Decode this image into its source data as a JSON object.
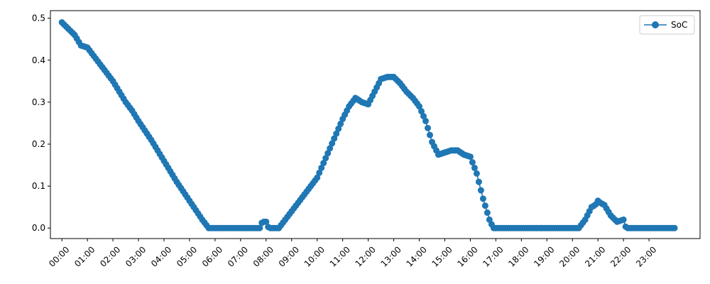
{
  "chart_data": {
    "type": "line",
    "title": "",
    "xlabel": "",
    "ylabel": "",
    "x_tick_labels": [
      "00:00",
      "01:00",
      "02:00",
      "03:00",
      "04:00",
      "05:00",
      "06:00",
      "07:00",
      "08:00",
      "09:00",
      "10:00",
      "11:00",
      "12:00",
      "13:00",
      "14:00",
      "15:00",
      "16:00",
      "17:00",
      "18:00",
      "19:00",
      "20:00",
      "21:00",
      "22:00",
      "23:00"
    ],
    "y_tick_labels": [
      "0.0",
      "0.1",
      "0.2",
      "0.3",
      "0.4",
      "0.5"
    ],
    "y_ticks": [
      0.0,
      0.1,
      0.2,
      0.3,
      0.4,
      0.5
    ],
    "xlim_hours": [
      -0.45,
      25.0
    ],
    "ylim": [
      -0.025,
      0.518
    ],
    "grid": false,
    "legend_position": "top-right",
    "series": [
      {
        "name": "SoC",
        "color": "#1f77b4",
        "marker": "circle",
        "x_hours": [
          0.0,
          0.5,
          0.75,
          1.0,
          1.5,
          2.0,
          2.5,
          2.75,
          3.0,
          3.5,
          4.0,
          4.5,
          5.0,
          5.5,
          5.75,
          6.0,
          6.25,
          6.5,
          7.0,
          7.5,
          7.75,
          7.85,
          8.0,
          8.1,
          8.25,
          8.5,
          8.75,
          9.0,
          9.5,
          10.0,
          10.5,
          11.0,
          11.25,
          11.5,
          11.75,
          12.0,
          12.25,
          12.5,
          12.75,
          13.0,
          13.25,
          13.5,
          13.75,
          14.0,
          14.25,
          14.5,
          14.75,
          15.0,
          15.25,
          15.5,
          15.75,
          16.0,
          16.25,
          16.5,
          16.75,
          16.9,
          17.0,
          17.25,
          17.5,
          18.0,
          18.5,
          19.0,
          19.5,
          20.0,
          20.25,
          20.5,
          20.75,
          20.9,
          21.0,
          21.1,
          21.25,
          21.5,
          21.75,
          22.0,
          22.1,
          22.5,
          23.0,
          23.5,
          24.0
        ],
        "y_values": [
          0.49,
          0.46,
          0.435,
          0.43,
          0.39,
          0.35,
          0.3,
          0.28,
          0.255,
          0.21,
          0.16,
          0.11,
          0.065,
          0.02,
          0.0,
          0.0,
          0.0,
          0.0,
          0.0,
          0.0,
          0.0,
          0.015,
          0.015,
          0.0,
          0.0,
          0.0,
          0.02,
          0.04,
          0.08,
          0.12,
          0.19,
          0.26,
          0.29,
          0.31,
          0.3,
          0.295,
          0.325,
          0.355,
          0.36,
          0.36,
          0.345,
          0.325,
          0.31,
          0.29,
          0.255,
          0.205,
          0.175,
          0.18,
          0.185,
          0.185,
          0.175,
          0.17,
          0.13,
          0.07,
          0.02,
          0.0,
          0.0,
          0.0,
          0.0,
          0.0,
          0.0,
          0.0,
          0.0,
          0.0,
          0.0,
          0.02,
          0.05,
          0.055,
          0.065,
          0.06,
          0.055,
          0.03,
          0.015,
          0.02,
          0.0,
          0.0,
          0.0,
          0.0,
          0.0
        ]
      }
    ]
  }
}
